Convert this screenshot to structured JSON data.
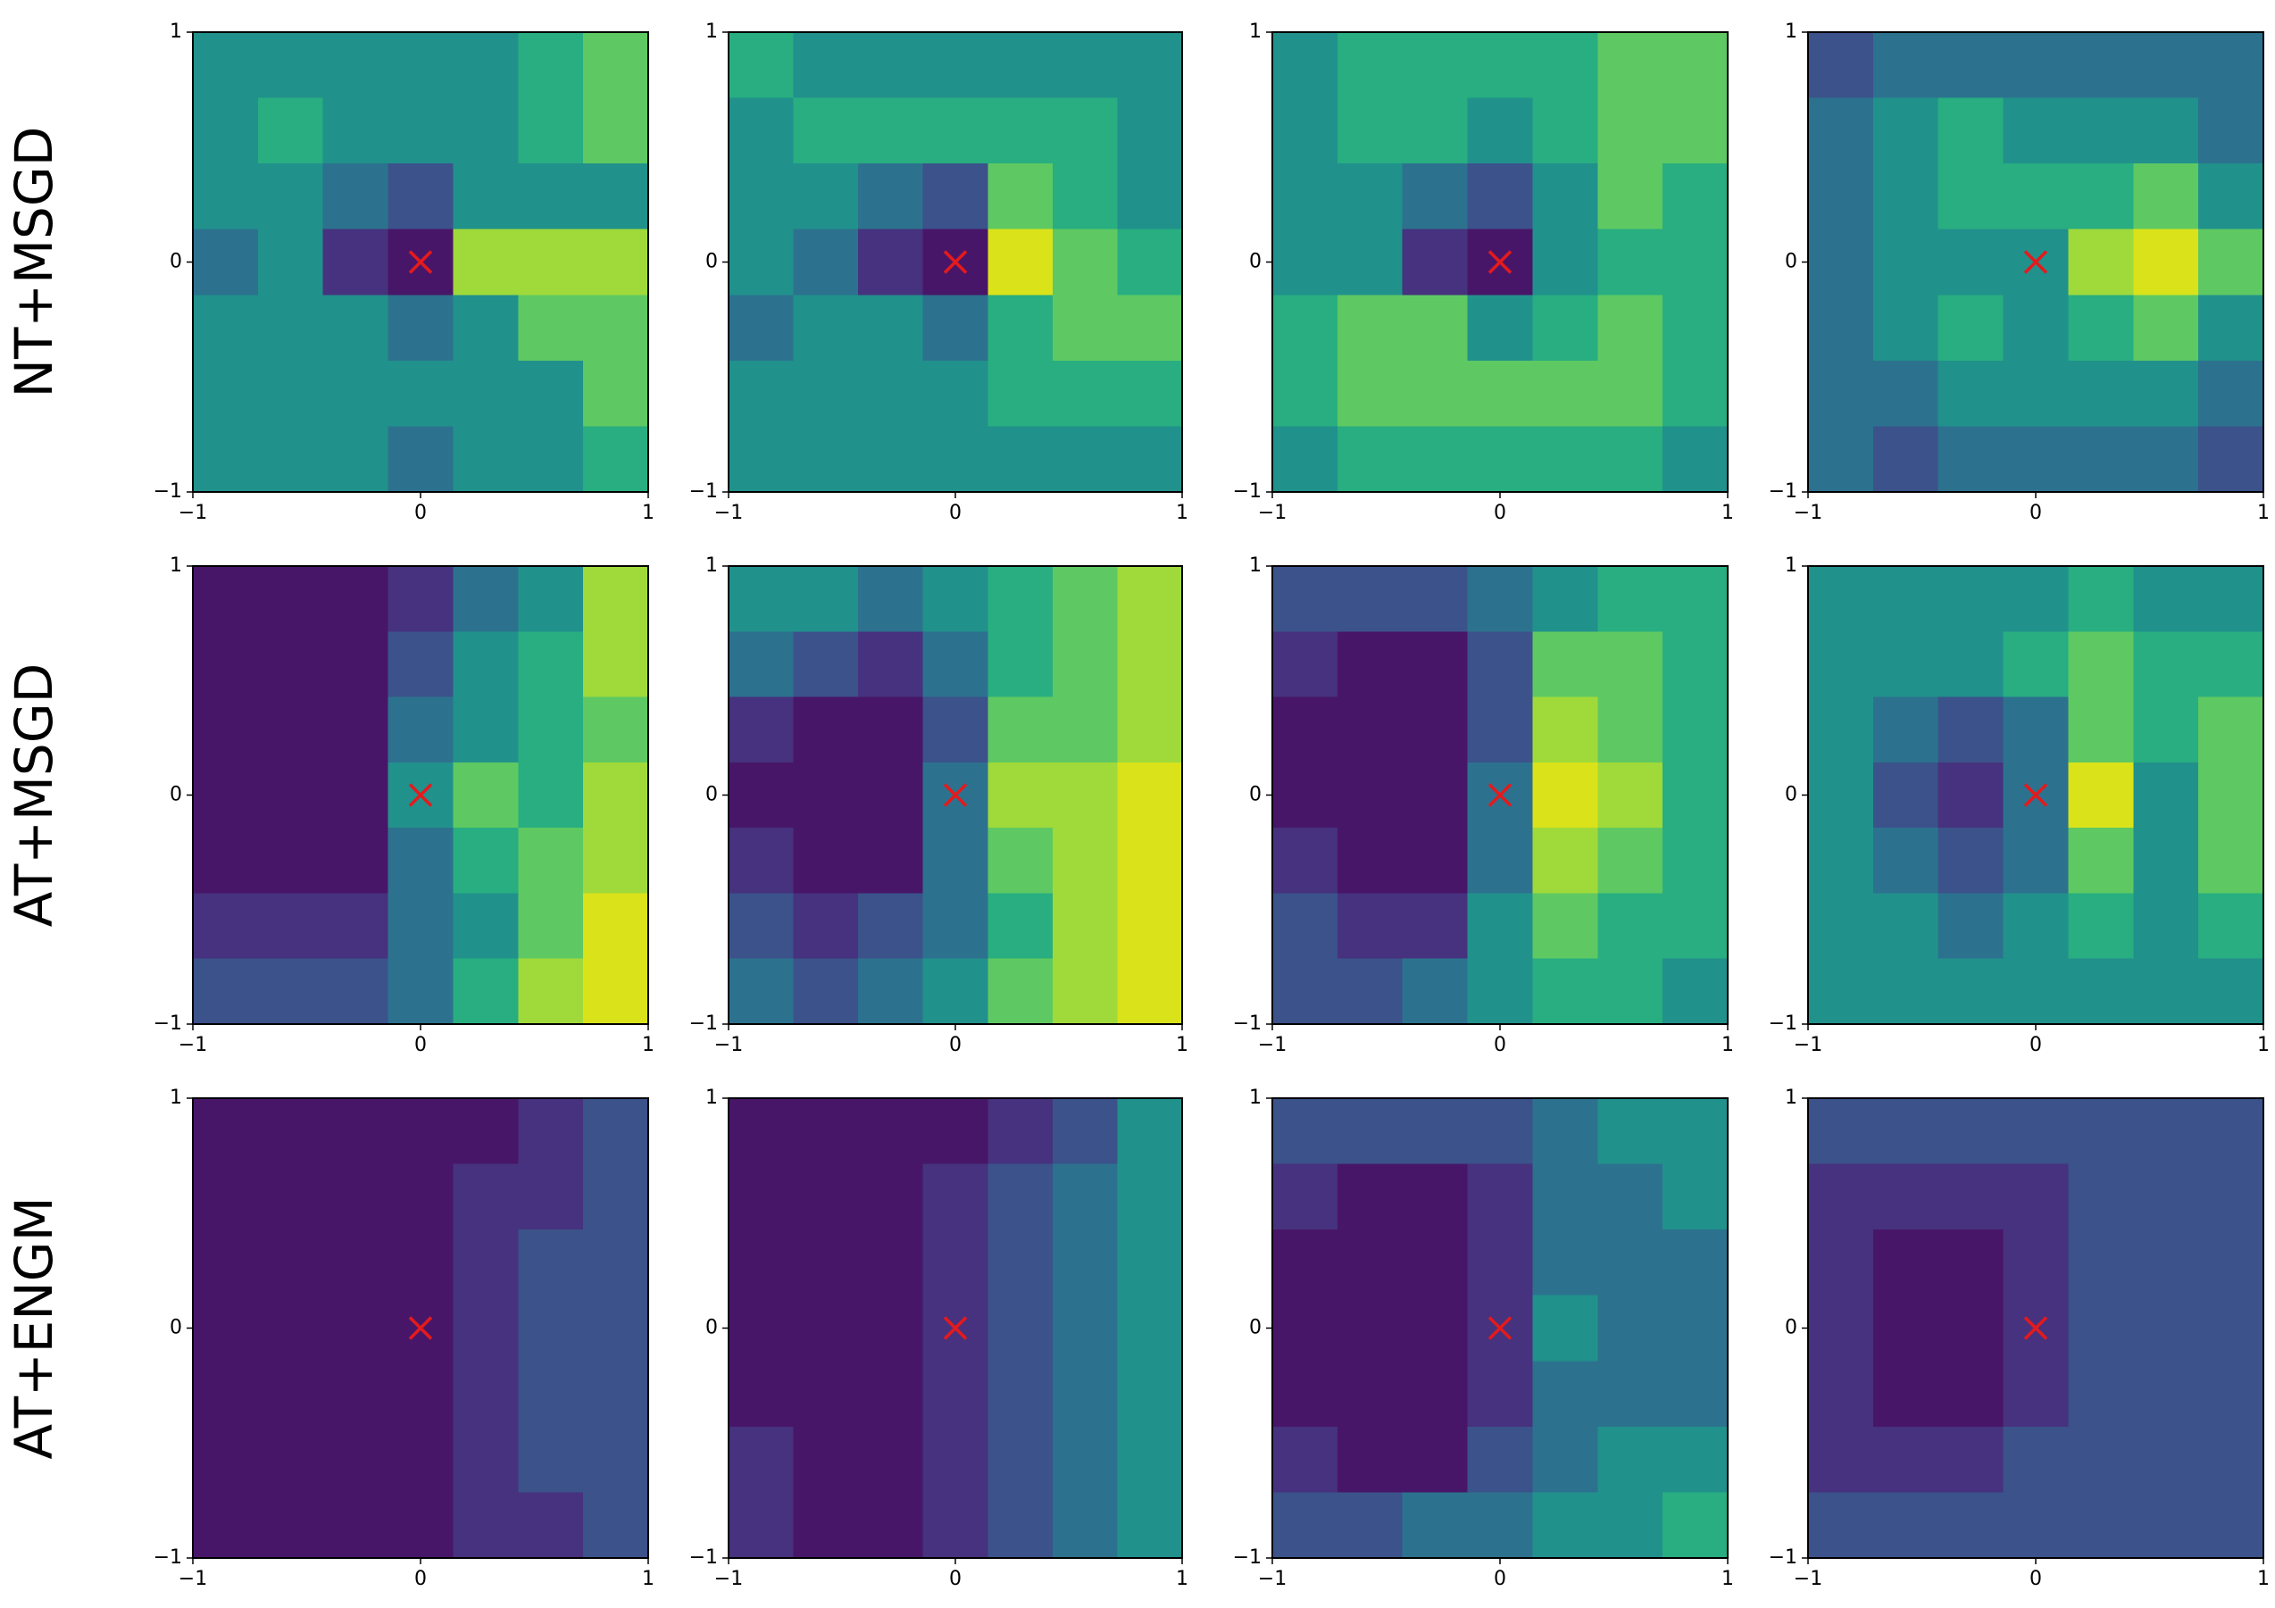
{
  "row_labels": [
    "NT+MSGD",
    "AT+MSGD",
    "AT+ENGM"
  ],
  "colormap": [
    "#481668",
    "#46327e",
    "#3b528b",
    "#2c728e",
    "#21918c",
    "#28ae80",
    "#5ec962",
    "#9fda3a",
    "#dae319"
  ],
  "chart_data": [
    {
      "type": "contour",
      "xlim": [
        -1,
        1
      ],
      "ylim": [
        -1,
        1
      ],
      "xticks": [
        {
          "value": -1,
          "label": "−1"
        },
        0,
        1
      ],
      "yticks": [
        {
          "value": -1,
          "label": "−1"
        },
        0,
        1
      ],
      "marker": {
        "x": 0,
        "y": 0,
        "color": "#e41a1c"
      },
      "z": [
        [
          4,
          4,
          4,
          4,
          4,
          5,
          6
        ],
        [
          4,
          5,
          4,
          4,
          4,
          5,
          6
        ],
        [
          4,
          4,
          3,
          2,
          4,
          4,
          4
        ],
        [
          3,
          4,
          1,
          0,
          7,
          7,
          7
        ],
        [
          4,
          4,
          4,
          3,
          4,
          6,
          6
        ],
        [
          4,
          4,
          4,
          4,
          4,
          4,
          6
        ],
        [
          4,
          4,
          4,
          3,
          4,
          4,
          5
        ]
      ]
    },
    {
      "type": "contour",
      "xlim": [
        -1,
        1
      ],
      "ylim": [
        -1,
        1
      ],
      "xticks": [
        {
          "value": -1,
          "label": "−1"
        },
        0,
        1
      ],
      "yticks": [
        {
          "value": -1,
          "label": "−1"
        },
        0,
        1
      ],
      "marker": {
        "x": 0,
        "y": 0,
        "color": "#e41a1c"
      },
      "z": [
        [
          5,
          4,
          4,
          4,
          4,
          4,
          4
        ],
        [
          4,
          5,
          5,
          5,
          5,
          5,
          4
        ],
        [
          4,
          4,
          3,
          2,
          6,
          5,
          4
        ],
        [
          4,
          3,
          1,
          0,
          8,
          6,
          5
        ],
        [
          3,
          4,
          4,
          3,
          5,
          6,
          6
        ],
        [
          4,
          4,
          4,
          4,
          5,
          5,
          5
        ],
        [
          4,
          4,
          4,
          4,
          4,
          4,
          4
        ]
      ]
    },
    {
      "type": "contour",
      "xlim": [
        -1,
        1
      ],
      "ylim": [
        -1,
        1
      ],
      "xticks": [
        {
          "value": -1,
          "label": "−1"
        },
        0,
        1
      ],
      "yticks": [
        {
          "value": -1,
          "label": "−1"
        },
        0,
        1
      ],
      "marker": {
        "x": 0,
        "y": 0,
        "color": "#e41a1c"
      },
      "z": [
        [
          4,
          5,
          5,
          5,
          5,
          6,
          6
        ],
        [
          4,
          5,
          5,
          4,
          5,
          6,
          6
        ],
        [
          4,
          4,
          3,
          2,
          4,
          6,
          5
        ],
        [
          4,
          4,
          1,
          0,
          4,
          5,
          5
        ],
        [
          5,
          6,
          6,
          4,
          5,
          6,
          5
        ],
        [
          5,
          6,
          6,
          6,
          6,
          6,
          5
        ],
        [
          4,
          5,
          5,
          5,
          5,
          5,
          4
        ]
      ]
    },
    {
      "type": "contour",
      "xlim": [
        -1,
        1
      ],
      "ylim": [
        -1,
        1
      ],
      "xticks": [
        {
          "value": -1,
          "label": "−1"
        },
        0,
        1
      ],
      "yticks": [
        {
          "value": -1,
          "label": "−1"
        },
        0,
        1
      ],
      "marker": {
        "x": 0,
        "y": 0,
        "color": "#e41a1c"
      },
      "z": [
        [
          2,
          3,
          3,
          3,
          3,
          3,
          3
        ],
        [
          3,
          4,
          5,
          4,
          4,
          4,
          3
        ],
        [
          3,
          4,
          5,
          5,
          5,
          6,
          4
        ],
        [
          3,
          4,
          4,
          4,
          7,
          8,
          6
        ],
        [
          3,
          4,
          5,
          4,
          5,
          6,
          4
        ],
        [
          3,
          3,
          4,
          4,
          4,
          4,
          3
        ],
        [
          3,
          2,
          3,
          3,
          3,
          3,
          2
        ]
      ]
    },
    {
      "type": "contour",
      "xlim": [
        -1,
        1
      ],
      "ylim": [
        -1,
        1
      ],
      "xticks": [
        {
          "value": -1,
          "label": "−1"
        },
        0,
        1
      ],
      "yticks": [
        {
          "value": -1,
          "label": "−1"
        },
        0,
        1
      ],
      "marker": {
        "x": 0,
        "y": 0,
        "color": "#e41a1c"
      },
      "z": [
        [
          0,
          0,
          0,
          1,
          3,
          4,
          7
        ],
        [
          0,
          0,
          0,
          2,
          4,
          5,
          7
        ],
        [
          0,
          0,
          0,
          3,
          4,
          5,
          6
        ],
        [
          0,
          0,
          0,
          4,
          6,
          5,
          7
        ],
        [
          0,
          0,
          0,
          3,
          5,
          6,
          7
        ],
        [
          1,
          1,
          1,
          3,
          4,
          6,
          8
        ],
        [
          2,
          2,
          2,
          3,
          5,
          7,
          8
        ]
      ]
    },
    {
      "type": "contour",
      "xlim": [
        -1,
        1
      ],
      "ylim": [
        -1,
        1
      ],
      "xticks": [
        {
          "value": -1,
          "label": "−1"
        },
        0,
        1
      ],
      "yticks": [
        {
          "value": -1,
          "label": "−1"
        },
        0,
        1
      ],
      "marker": {
        "x": 0,
        "y": 0,
        "color": "#e41a1c"
      },
      "z": [
        [
          4,
          4,
          3,
          4,
          5,
          6,
          7
        ],
        [
          3,
          2,
          1,
          3,
          5,
          6,
          7
        ],
        [
          1,
          0,
          0,
          2,
          6,
          6,
          7
        ],
        [
          0,
          0,
          0,
          3,
          7,
          7,
          8
        ],
        [
          1,
          0,
          0,
          3,
          6,
          7,
          8
        ],
        [
          2,
          1,
          2,
          3,
          5,
          7,
          8
        ],
        [
          3,
          2,
          3,
          4,
          6,
          7,
          8
        ]
      ]
    },
    {
      "type": "contour",
      "xlim": [
        -1,
        1
      ],
      "ylim": [
        -1,
        1
      ],
      "xticks": [
        {
          "value": -1,
          "label": "−1"
        },
        0,
        1
      ],
      "yticks": [
        {
          "value": -1,
          "label": "−1"
        },
        0,
        1
      ],
      "marker": {
        "x": 0,
        "y": 0,
        "color": "#e41a1c"
      },
      "z": [
        [
          2,
          2,
          2,
          3,
          4,
          5,
          5
        ],
        [
          1,
          0,
          0,
          2,
          6,
          6,
          5
        ],
        [
          0,
          0,
          0,
          2,
          7,
          6,
          5
        ],
        [
          0,
          0,
          0,
          3,
          8,
          7,
          5
        ],
        [
          1,
          0,
          0,
          3,
          7,
          6,
          5
        ],
        [
          2,
          1,
          1,
          4,
          6,
          5,
          5
        ],
        [
          2,
          2,
          3,
          4,
          5,
          5,
          4
        ]
      ]
    },
    {
      "type": "contour",
      "xlim": [
        -1,
        1
      ],
      "ylim": [
        -1,
        1
      ],
      "xticks": [
        {
          "value": -1,
          "label": "−1"
        },
        0,
        1
      ],
      "yticks": [
        {
          "value": -1,
          "label": "−1"
        },
        0,
        1
      ],
      "marker": {
        "x": 0,
        "y": 0,
        "color": "#e41a1c"
      },
      "z": [
        [
          4,
          4,
          4,
          4,
          5,
          4,
          4
        ],
        [
          4,
          4,
          4,
          5,
          6,
          5,
          5
        ],
        [
          4,
          3,
          2,
          3,
          6,
          5,
          6
        ],
        [
          4,
          2,
          1,
          3,
          8,
          4,
          6
        ],
        [
          4,
          3,
          2,
          3,
          6,
          4,
          6
        ],
        [
          4,
          4,
          3,
          4,
          5,
          4,
          5
        ],
        [
          4,
          4,
          4,
          4,
          4,
          4,
          4
        ]
      ]
    },
    {
      "type": "contour",
      "xlim": [
        -1,
        1
      ],
      "ylim": [
        -1,
        1
      ],
      "xticks": [
        {
          "value": -1,
          "label": "−1"
        },
        0,
        1
      ],
      "yticks": [
        {
          "value": -1,
          "label": "−1"
        },
        0,
        1
      ],
      "marker": {
        "x": 0,
        "y": 0,
        "color": "#e41a1c"
      },
      "z": [
        [
          0,
          0,
          0,
          0,
          0,
          1,
          2
        ],
        [
          0,
          0,
          0,
          0,
          1,
          1,
          2
        ],
        [
          0,
          0,
          0,
          0,
          1,
          2,
          2
        ],
        [
          0,
          0,
          0,
          0,
          1,
          2,
          2
        ],
        [
          0,
          0,
          0,
          0,
          1,
          2,
          2
        ],
        [
          0,
          0,
          0,
          0,
          1,
          2,
          2
        ],
        [
          0,
          0,
          0,
          0,
          1,
          1,
          2
        ]
      ]
    },
    {
      "type": "contour",
      "xlim": [
        -1,
        1
      ],
      "ylim": [
        -1,
        1
      ],
      "xticks": [
        {
          "value": -1,
          "label": "−1"
        },
        0,
        1
      ],
      "yticks": [
        {
          "value": -1,
          "label": "−1"
        },
        0,
        1
      ],
      "marker": {
        "x": 0,
        "y": 0,
        "color": "#e41a1c"
      },
      "z": [
        [
          0,
          0,
          0,
          0,
          1,
          2,
          4
        ],
        [
          0,
          0,
          0,
          1,
          2,
          3,
          4
        ],
        [
          0,
          0,
          0,
          1,
          2,
          3,
          4
        ],
        [
          0,
          0,
          0,
          1,
          2,
          3,
          4
        ],
        [
          0,
          0,
          0,
          1,
          2,
          3,
          4
        ],
        [
          1,
          0,
          0,
          1,
          2,
          3,
          4
        ],
        [
          1,
          0,
          0,
          1,
          2,
          3,
          4
        ]
      ]
    },
    {
      "type": "contour",
      "xlim": [
        -1,
        1
      ],
      "ylim": [
        -1,
        1
      ],
      "xticks": [
        {
          "value": -1,
          "label": "−1"
        },
        0,
        1
      ],
      "yticks": [
        {
          "value": -1,
          "label": "−1"
        },
        0,
        1
      ],
      "marker": {
        "x": 0,
        "y": 0,
        "color": "#e41a1c"
      },
      "z": [
        [
          2,
          2,
          2,
          2,
          3,
          4,
          4
        ],
        [
          1,
          0,
          0,
          1,
          3,
          3,
          4
        ],
        [
          0,
          0,
          0,
          1,
          3,
          3,
          3
        ],
        [
          0,
          0,
          0,
          1,
          4,
          3,
          3
        ],
        [
          0,
          0,
          0,
          1,
          3,
          3,
          3
        ],
        [
          1,
          0,
          0,
          2,
          3,
          4,
          4
        ],
        [
          2,
          2,
          3,
          3,
          4,
          4,
          5
        ]
      ]
    },
    {
      "type": "contour",
      "xlim": [
        -1,
        1
      ],
      "ylim": [
        -1,
        1
      ],
      "xticks": [
        {
          "value": -1,
          "label": "−1"
        },
        0,
        1
      ],
      "yticks": [
        {
          "value": -1,
          "label": "−1"
        },
        0,
        1
      ],
      "marker": {
        "x": 0,
        "y": 0,
        "color": "#e41a1c"
      },
      "z": [
        [
          2,
          2,
          2,
          2,
          2,
          2,
          2
        ],
        [
          1,
          1,
          1,
          1,
          2,
          2,
          2
        ],
        [
          1,
          0,
          0,
          1,
          2,
          2,
          2
        ],
        [
          1,
          0,
          0,
          1,
          2,
          2,
          2
        ],
        [
          1,
          0,
          0,
          1,
          2,
          2,
          2
        ],
        [
          1,
          1,
          1,
          2,
          2,
          2,
          2
        ],
        [
          2,
          2,
          2,
          2,
          2,
          2,
          2
        ]
      ]
    }
  ]
}
